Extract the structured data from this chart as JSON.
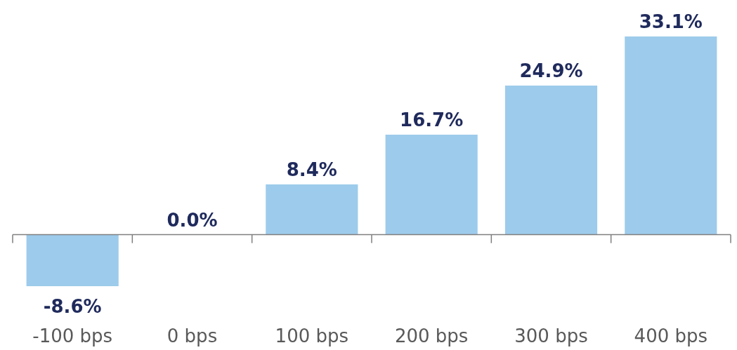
{
  "chart_data": {
    "type": "bar",
    "categories": [
      "-100 bps",
      "0 bps",
      "100 bps",
      "200 bps",
      "300 bps",
      "400 bps"
    ],
    "values": [
      -8.6,
      0.0,
      8.4,
      16.7,
      24.9,
      33.1
    ],
    "value_labels": [
      "-8.6%",
      "0.0%",
      "8.4%",
      "16.7%",
      "24.9%",
      "33.1%"
    ],
    "color": "#9dcbeb"
  }
}
